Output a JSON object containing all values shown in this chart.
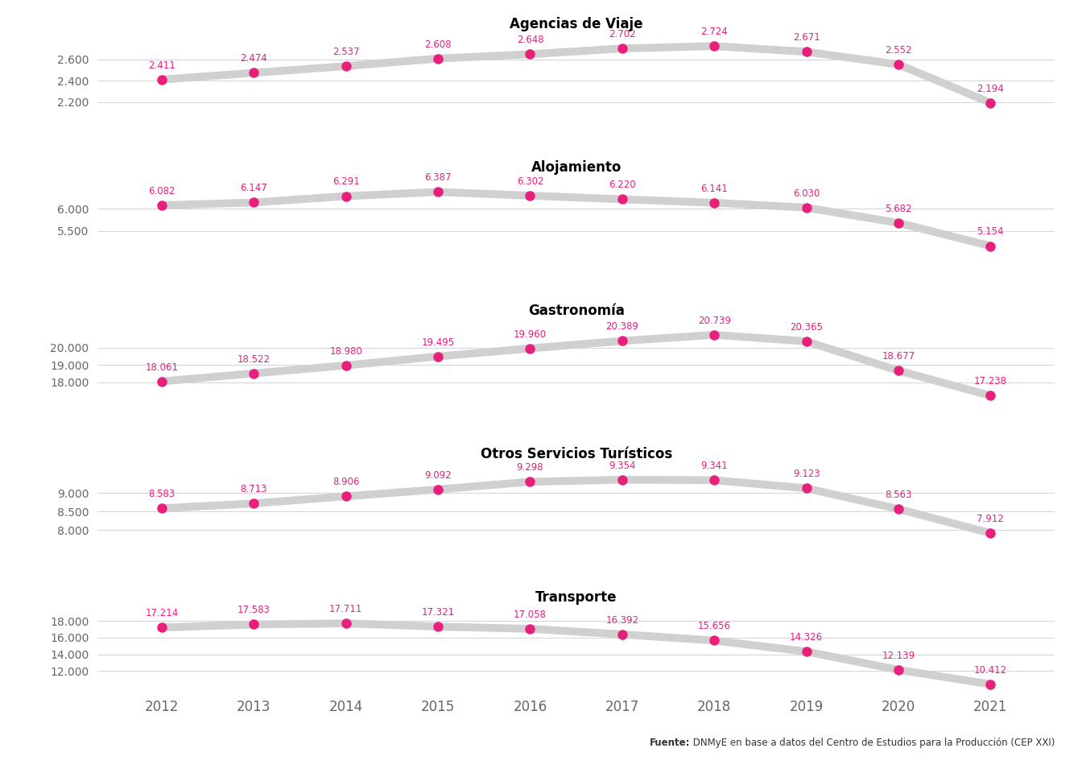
{
  "years": [
    2012,
    2013,
    2014,
    2015,
    2016,
    2017,
    2018,
    2019,
    2020,
    2021
  ],
  "series": {
    "Agencias de Viaje": {
      "values": [
        2411,
        2474,
        2537,
        2608,
        2648,
        2702,
        2724,
        2671,
        2552,
        2194
      ],
      "yticks": [
        2200,
        2400,
        2600
      ],
      "ylim": [
        2050,
        2830
      ]
    },
    "Alojamiento": {
      "values": [
        6082,
        6147,
        6291,
        6387,
        6302,
        6220,
        6141,
        6030,
        5682,
        5154
      ],
      "yticks": [
        5500,
        6000
      ],
      "ylim": [
        4800,
        6700
      ]
    },
    "Gastronomía": {
      "values": [
        18061,
        18522,
        18980,
        19495,
        19960,
        20389,
        20739,
        20365,
        18677,
        17238
      ],
      "yticks": [
        18000,
        19000,
        20000
      ],
      "ylim": [
        16700,
        21500
      ]
    },
    "Otros Servicios Turísticos": {
      "values": [
        8583,
        8713,
        8906,
        9092,
        9298,
        9354,
        9341,
        9123,
        8563,
        7912
      ],
      "yticks": [
        8000,
        8500,
        9000
      ],
      "ylim": [
        7500,
        9750
      ]
    },
    "Transporte": {
      "values": [
        17214,
        17583,
        17711,
        17321,
        17058,
        16392,
        15656,
        14326,
        12139,
        10412
      ],
      "yticks": [
        12000,
        14000,
        16000,
        18000
      ],
      "ylim": [
        9500,
        19500
      ]
    }
  },
  "series_order": [
    "Agencias de Viaje",
    "Alojamiento",
    "Gastronomía",
    "Otros Servicios Turísticos",
    "Transporte"
  ],
  "line_color": "#d0d0d0",
  "marker_color": "#e8207c",
  "label_color": "#e8207c",
  "title_color": "#000000",
  "tick_label_color": "#666666",
  "background_color": "#ffffff",
  "line_width": 7,
  "marker_size": 9,
  "label_fontsize": 8.5,
  "title_fontsize": 12,
  "tick_fontsize": 10,
  "xlabel_fontsize": 12,
  "source_bold": "Fuente:",
  "source_rest": " DNMyE en base a datos del Centro de Estudios para la Producción (CEP XXI)"
}
